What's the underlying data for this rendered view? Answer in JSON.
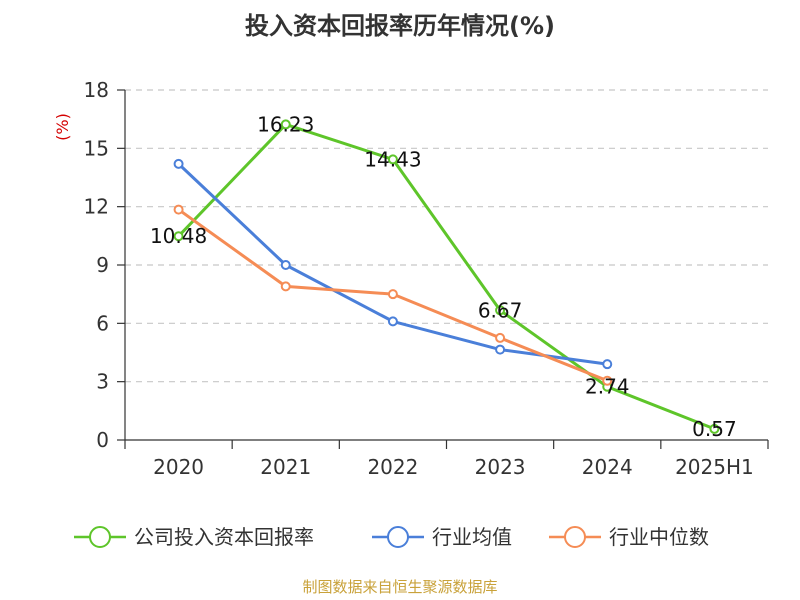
{
  "chart_data": {
    "type": "line",
    "title": "投入资本回报率历年情况(%)",
    "ylabel": "(%)",
    "categories": [
      "2020",
      "2021",
      "2022",
      "2023",
      "2024",
      "2025H1"
    ],
    "ylim": [
      0,
      18
    ],
    "yticks": [
      "0",
      "3",
      "6",
      "9",
      "12",
      "15",
      "18"
    ],
    "grid": true,
    "legend_position": "bottom",
    "series": [
      {
        "name": "公司投入资本回报率",
        "color": "#5ec52a",
        "values": [
          10.48,
          16.23,
          14.43,
          6.67,
          2.74,
          0.57
        ],
        "labels": [
          "10.48",
          "16.23",
          "14.43",
          "6.67",
          "2.74",
          "0.57"
        ]
      },
      {
        "name": "行业均值",
        "color": "#4a7fd9",
        "values": [
          14.2,
          9.0,
          6.1,
          4.65,
          3.9,
          null
        ]
      },
      {
        "name": "行业中位数",
        "color": "#f58c55",
        "values": [
          11.85,
          7.9,
          7.5,
          5.25,
          3.05,
          null
        ]
      }
    ],
    "source": "制图数据来自恒生聚源数据库"
  }
}
